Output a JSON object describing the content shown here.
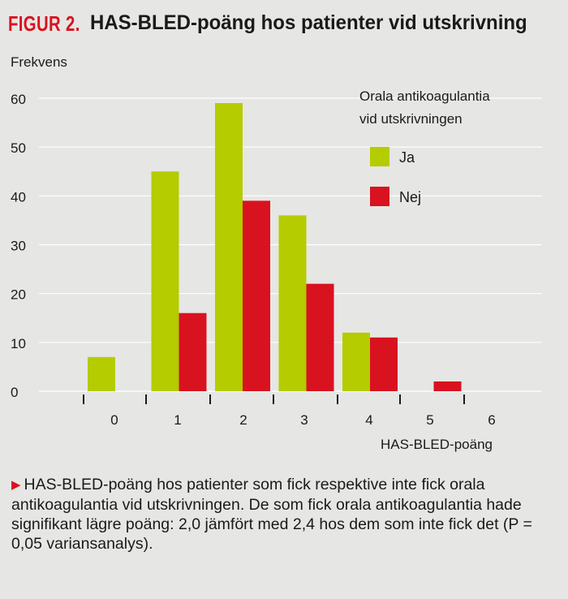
{
  "figure": {
    "label": "FIGUR 2.",
    "title": "HAS-BLED-poäng hos patienter vid utskrivning",
    "caption": "HAS-BLED-poäng hos patienter som fick respektive inte fick orala antikoagulantia vid utskrivningen. De som fick orala antikoagulantia hade signifikant lägre poäng: 2,0 jämfört med 2,4 hos dem som inte fick det (P = 0,05 variansanalys)."
  },
  "colors": {
    "ja": "#b4cc00",
    "nej": "#d9121f",
    "background": "#e6e6e4",
    "text": "#1a1a1a"
  },
  "chart_data": {
    "type": "bar",
    "title": "HAS-BLED-poäng hos patienter vid utskrivning",
    "xlabel": "HAS-BLED-poäng",
    "ylabel": "Frekvens",
    "categories": [
      "0",
      "1",
      "2",
      "3",
      "4",
      "5",
      "6"
    ],
    "series": [
      {
        "name": "Ja",
        "values": [
          7,
          45,
          59,
          36,
          12,
          0,
          0
        ]
      },
      {
        "name": "Nej",
        "values": [
          0,
          16,
          39,
          22,
          11,
          2,
          0
        ]
      }
    ],
    "ylim": [
      0,
      60
    ],
    "yticks": [
      "0",
      "10",
      "20",
      "30",
      "40",
      "50",
      "60"
    ],
    "grid": true,
    "legend": {
      "title_lines": [
        "Orala antikoagulantia",
        "vid utskrivningen"
      ],
      "placement": "top-right"
    }
  }
}
